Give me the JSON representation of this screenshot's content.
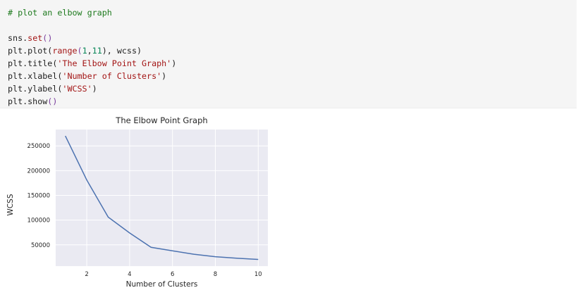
{
  "code": {
    "comment": "# plot an elbow graph",
    "line1": {
      "obj": "sns.",
      "fn": "set",
      "args": "()"
    },
    "line2": {
      "obj": "plt.plot(",
      "fn": "range",
      "args_open": "(",
      "n1": "1",
      "comma": ",",
      "n2": "11",
      "args_close": "), wcss)"
    },
    "line3": {
      "obj": "plt.title(",
      "str": "'The Elbow Point Graph'",
      "close": ")"
    },
    "line4": {
      "obj": "plt.xlabel(",
      "str": "'Number of Clusters'",
      "close": ")"
    },
    "line5": {
      "obj": "plt.ylabel(",
      "str": "'WCSS'",
      "close": ")"
    },
    "line6": {
      "obj": "plt.show",
      "args": "()"
    }
  },
  "chart_data": {
    "type": "line",
    "title": "The Elbow Point Graph",
    "xlabel": "Number of Clusters",
    "ylabel": "WCSS",
    "x": [
      1,
      2,
      3,
      4,
      5,
      6,
      7,
      8,
      9,
      10
    ],
    "series": [
      {
        "values": [
          270000,
          181000,
          106000,
          74000,
          45000,
          38000,
          31000,
          26000,
          23000,
          20500
        ],
        "color": "#4c72b0"
      }
    ],
    "xticks": [
      2,
      4,
      6,
      8,
      10
    ],
    "yticks": [
      50000,
      100000,
      150000,
      200000,
      250000
    ],
    "xtick_labels": [
      "2",
      "4",
      "6",
      "8",
      "10"
    ],
    "ytick_labels": [
      "50000",
      "100000",
      "150000",
      "200000",
      "250000"
    ],
    "xlim": [
      0.55,
      10.45
    ],
    "ylim": [
      7000,
      283000
    ],
    "grid": true,
    "style": "seaborn-darkgrid",
    "background_color": "#eaeaf2"
  }
}
